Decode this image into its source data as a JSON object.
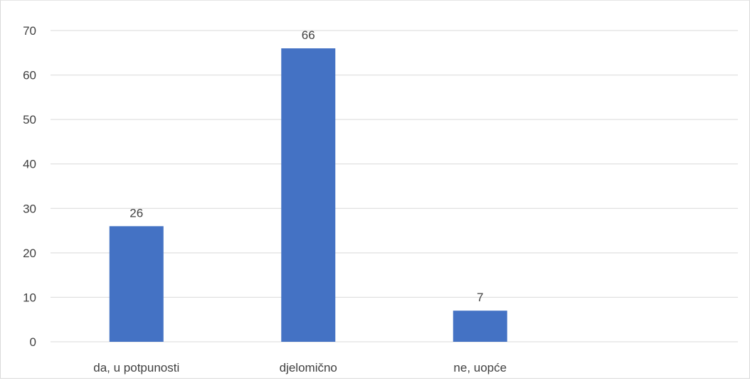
{
  "chart_data": {
    "type": "bar",
    "categories": [
      "da, u potpunosti",
      "djelomično",
      "ne, uopće"
    ],
    "values": [
      26,
      66,
      7
    ],
    "ylim": [
      0,
      70
    ],
    "yticks": [
      0,
      10,
      20,
      30,
      40,
      50,
      60,
      70
    ],
    "grid": true,
    "data_labels": true,
    "legend": "none",
    "bar_color": "#4472c4",
    "grid_color": "#d9d9d9"
  }
}
